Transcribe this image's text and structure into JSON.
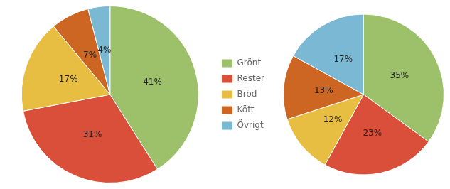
{
  "chart_data": [
    {
      "type": "pie",
      "categories": [
        "Grönt",
        "Rester",
        "Bröd",
        "Kött",
        "Övrigt"
      ],
      "values": [
        41,
        31,
        17,
        7,
        4
      ],
      "value_labels": [
        "41%",
        "31%",
        "17%",
        "7%",
        "4%"
      ],
      "colors": [
        "#9dc06a",
        "#d94f3a",
        "#e8be42",
        "#cc6622",
        "#7ab8d4"
      ],
      "data_labels": true,
      "legend": "right"
    },
    {
      "type": "pie",
      "categories": [
        "Grönt",
        "Rester",
        "Bröd",
        "Kött",
        "Övrigt"
      ],
      "values": [
        35,
        23,
        12,
        13,
        17
      ],
      "value_labels": [
        "35%",
        "23%",
        "12%",
        "13%",
        "17%"
      ],
      "colors": [
        "#9dc06a",
        "#d94f3a",
        "#e8be42",
        "#cc6622",
        "#7ab8d4"
      ],
      "data_labels": true
    }
  ]
}
